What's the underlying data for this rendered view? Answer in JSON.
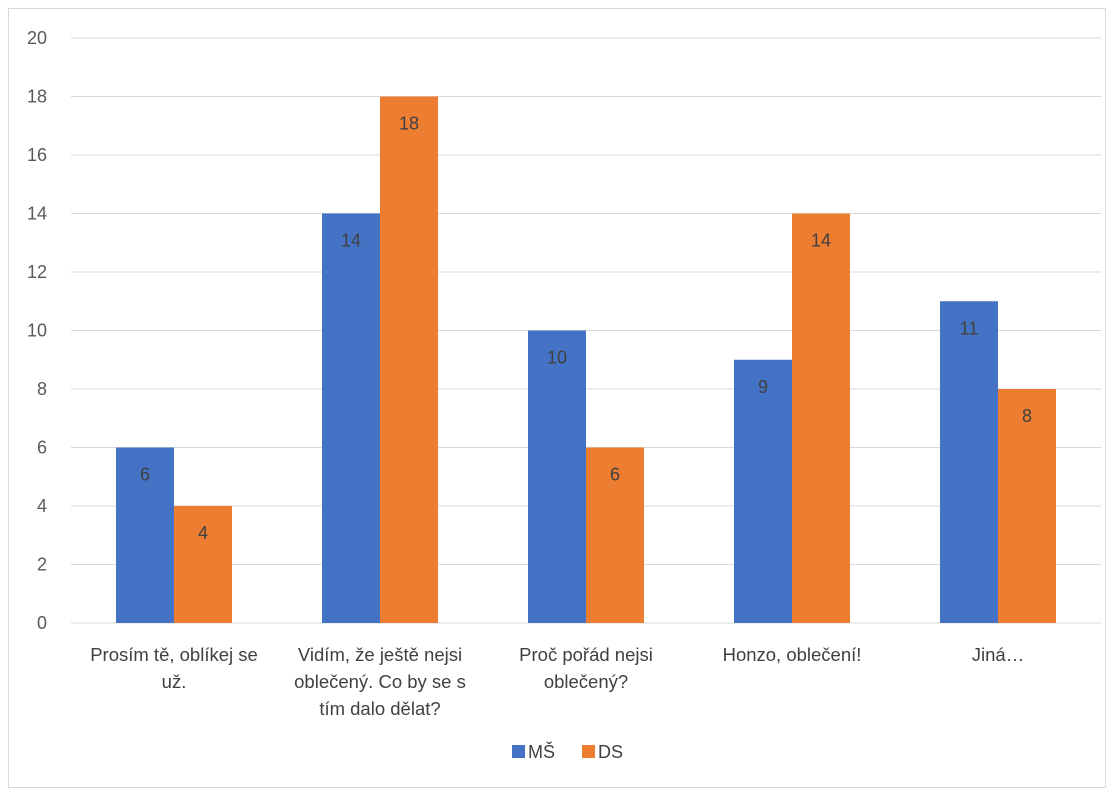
{
  "chart_data": {
    "type": "bar",
    "categories": [
      [
        "Prosím tě, oblíkej se",
        "už."
      ],
      [
        "Vidím, že ještě nejsi",
        "oblečený. Co by se s",
        "tím dalo dělat?"
      ],
      [
        "Proč pořád nejsi",
        "oblečený?"
      ],
      [
        "Honzo, oblečení!"
      ],
      [
        "Jiná…"
      ]
    ],
    "series": [
      {
        "name": "MŠ",
        "color": "#4472C4",
        "values": [
          6,
          14,
          10,
          9,
          11
        ]
      },
      {
        "name": "DS",
        "color": "#ED7D31",
        "values": [
          4,
          18,
          6,
          14,
          8
        ]
      }
    ],
    "ylim": [
      0,
      20
    ],
    "yticks": [
      0,
      2,
      4,
      6,
      8,
      10,
      12,
      14,
      16,
      18,
      20
    ],
    "grid": true,
    "legend": "bottom",
    "data_labels": true
  },
  "colors": {
    "gridline": "#d9d9d9",
    "axis": "#d9d9d9"
  }
}
